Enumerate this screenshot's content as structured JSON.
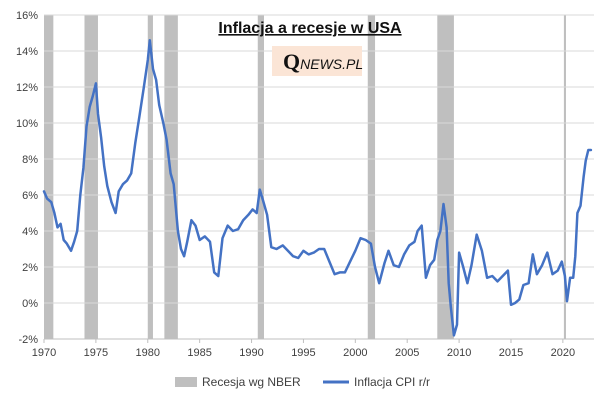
{
  "chart_data": {
    "type": "line",
    "title": "Inflacja a recesje w USA",
    "logo": {
      "q": "Q",
      "rest": "NEWS.PL"
    },
    "xlabel": "",
    "ylabel": "",
    "xlim": [
      1970,
      2023
    ],
    "ylim": [
      -2,
      16
    ],
    "x_ticks": [
      1970,
      1975,
      1980,
      1985,
      1990,
      1995,
      2000,
      2005,
      2010,
      2015,
      2020
    ],
    "y_ticks": [
      -2,
      0,
      2,
      4,
      6,
      8,
      10,
      12,
      14,
      16
    ],
    "y_tick_labels": [
      "-2%",
      "0%",
      "2%",
      "4%",
      "6%",
      "8%",
      "10%",
      "12%",
      "14%",
      "16%"
    ],
    "grid": "horizontal",
    "legend_position": "bottom",
    "colors": {
      "line": "#4472C4",
      "recession": "#BFBFBF",
      "grid": "#D9D9D9"
    },
    "recessions": {
      "name": "Recesja wg NBER",
      "periods": [
        [
          1970.0,
          1970.9
        ],
        [
          1973.9,
          1975.2
        ],
        [
          1980.0,
          1980.5
        ],
        [
          1981.6,
          1982.9
        ],
        [
          1990.6,
          1991.2
        ],
        [
          2001.2,
          2001.9
        ],
        [
          2007.9,
          2009.5
        ],
        [
          2020.1,
          2020.3
        ]
      ]
    },
    "series": [
      {
        "name": "Inflacja CPI r/r",
        "x": [
          1970.0,
          1970.3,
          1970.7,
          1971.0,
          1971.3,
          1971.6,
          1971.9,
          1972.2,
          1972.6,
          1972.9,
          1973.2,
          1973.5,
          1973.8,
          1974.1,
          1974.4,
          1974.7,
          1975.0,
          1975.2,
          1975.5,
          1975.8,
          1976.1,
          1976.5,
          1976.9,
          1977.2,
          1977.6,
          1978.0,
          1978.4,
          1978.8,
          1979.2,
          1979.6,
          1980.0,
          1980.2,
          1980.5,
          1980.8,
          1981.1,
          1981.5,
          1981.8,
          1982.2,
          1982.5,
          1982.9,
          1983.2,
          1983.5,
          1983.8,
          1984.2,
          1984.6,
          1985.0,
          1985.5,
          1986.0,
          1986.4,
          1986.8,
          1987.2,
          1987.7,
          1988.2,
          1988.7,
          1989.2,
          1989.7,
          1990.1,
          1990.5,
          1990.8,
          1991.1,
          1991.5,
          1991.9,
          1992.4,
          1993.0,
          1993.5,
          1994.0,
          1994.5,
          1995.0,
          1995.5,
          1996.0,
          1996.5,
          1997.0,
          1997.5,
          1998.0,
          1998.5,
          1999.0,
          1999.5,
          2000.0,
          2000.5,
          2001.0,
          2001.5,
          2001.9,
          2002.3,
          2002.8,
          2003.2,
          2003.7,
          2004.2,
          2004.7,
          2005.2,
          2005.7,
          2006.0,
          2006.4,
          2006.8,
          2007.2,
          2007.6,
          2007.9,
          2008.2,
          2008.5,
          2008.8,
          2009.0,
          2009.2,
          2009.5,
          2009.8,
          2010.0,
          2010.4,
          2010.8,
          2011.2,
          2011.7,
          2012.2,
          2012.7,
          2013.2,
          2013.7,
          2014.2,
          2014.7,
          2015.0,
          2015.4,
          2015.8,
          2016.2,
          2016.7,
          2017.1,
          2017.5,
          2018.0,
          2018.5,
          2019.0,
          2019.5,
          2019.9,
          2020.2,
          2020.4,
          2020.7,
          2021.0,
          2021.2,
          2021.4,
          2021.7,
          2022.0,
          2022.2,
          2022.45,
          2022.7
        ],
        "values": [
          6.2,
          5.8,
          5.6,
          5.0,
          4.2,
          4.4,
          3.5,
          3.3,
          2.9,
          3.4,
          4.0,
          6.0,
          7.5,
          9.8,
          10.9,
          11.5,
          12.2,
          10.5,
          9.2,
          7.6,
          6.5,
          5.6,
          5.0,
          6.2,
          6.6,
          6.8,
          7.2,
          8.9,
          10.4,
          11.9,
          13.5,
          14.6,
          13.0,
          12.4,
          11.0,
          10.0,
          9.1,
          7.2,
          6.6,
          4.0,
          3.0,
          2.6,
          3.4,
          4.6,
          4.3,
          3.5,
          3.7,
          3.4,
          1.7,
          1.5,
          3.6,
          4.3,
          4.0,
          4.1,
          4.6,
          4.9,
          5.2,
          5.0,
          6.3,
          5.7,
          4.9,
          3.1,
          3.0,
          3.2,
          2.9,
          2.6,
          2.5,
          2.9,
          2.7,
          2.8,
          3.0,
          3.0,
          2.3,
          1.6,
          1.7,
          1.7,
          2.3,
          2.9,
          3.6,
          3.5,
          3.3,
          2.0,
          1.1,
          2.2,
          2.9,
          2.1,
          2.0,
          2.7,
          3.2,
          3.4,
          4.0,
          4.3,
          1.4,
          2.1,
          2.4,
          3.5,
          4.0,
          5.5,
          4.2,
          1.1,
          -0.2,
          -1.8,
          -1.2,
          2.8,
          2.0,
          1.1,
          2.1,
          3.8,
          2.9,
          1.4,
          1.5,
          1.2,
          1.5,
          1.8,
          -0.1,
          0.0,
          0.2,
          1.0,
          1.1,
          2.7,
          1.6,
          2.1,
          2.8,
          1.6,
          1.8,
          2.3,
          1.5,
          0.1,
          1.4,
          1.4,
          2.6,
          5.0,
          5.4,
          7.0,
          7.9,
          8.5,
          8.5
        ]
      }
    ]
  }
}
